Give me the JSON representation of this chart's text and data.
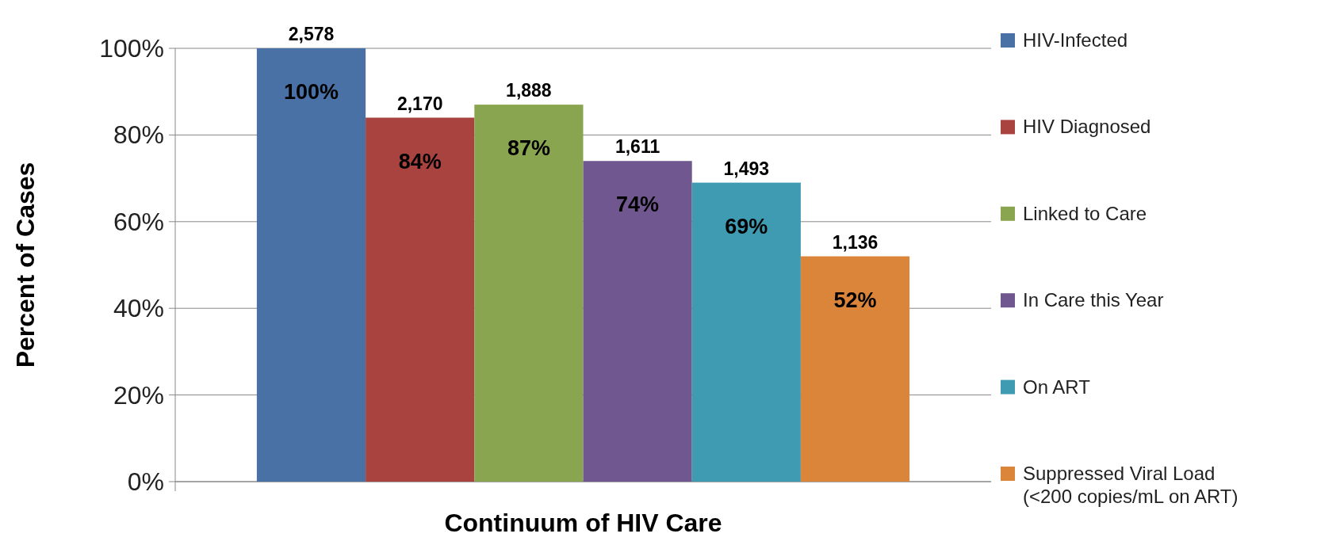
{
  "chart_data": {
    "type": "bar",
    "xlabel": "Continuum of HIV Care",
    "ylabel": "Percent of Cases",
    "categories": [
      null
    ],
    "series": [
      {
        "name": "HIV-Infected",
        "color": "#4a71a6",
        "values": [
          100
        ],
        "value_labels": [
          "100%"
        ]
      },
      {
        "name": "HIV Diagnosed",
        "color": "#a8433f",
        "values": [
          84
        ],
        "value_labels": [
          "84%"
        ]
      },
      {
        "name": "Linked to Care",
        "color": "#8aa54f",
        "values": [
          87
        ],
        "value_labels": [
          "87%"
        ]
      },
      {
        "name": "In Care this Year",
        "color": "#71578f",
        "values": [
          74
        ],
        "value_labels": [
          "74%"
        ]
      },
      {
        "name": "On ART",
        "color": "#3e9bb2",
        "values": [
          69
        ],
        "value_labels": [
          "69%"
        ]
      },
      {
        "name": "Suppressed Viral Load (<200 copies/mL on ART)",
        "color": "#db853b",
        "values": [
          52
        ],
        "value_labels": [
          "52%"
        ]
      }
    ],
    "annotations": [
      {
        "text": "2,578",
        "y": 100
      },
      {
        "text": "2,170",
        "y": 84
      },
      {
        "text": "1,888",
        "y": 87
      },
      {
        "text": "1,611",
        "y": 74
      },
      {
        "text": "1,493",
        "y": 69
      },
      {
        "text": "1,136",
        "y": 52
      }
    ],
    "ylim": [
      0,
      100
    ],
    "yticks": [
      {
        "value": 0,
        "label": "0%"
      },
      {
        "value": 20,
        "label": "20%"
      },
      {
        "value": 40,
        "label": "40%"
      },
      {
        "value": 60,
        "label": "60%"
      },
      {
        "value": 80,
        "label": "80%"
      },
      {
        "value": 100,
        "label": "100%"
      }
    ],
    "grid": "y",
    "legend": "right"
  }
}
